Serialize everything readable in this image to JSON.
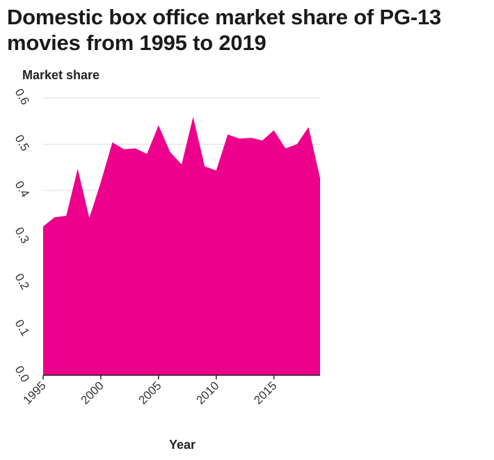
{
  "chart_data": {
    "type": "area",
    "title": "Domestic box office market share of PG-13 movies from 1995 to 2019",
    "xlabel": "Year",
    "ylabel": "Market share",
    "x": [
      1995,
      1996,
      1997,
      1998,
      1999,
      2000,
      2001,
      2002,
      2003,
      2004,
      2005,
      2006,
      2007,
      2008,
      2009,
      2010,
      2011,
      2012,
      2013,
      2014,
      2015,
      2016,
      2017,
      2018,
      2019
    ],
    "series": [
      {
        "values": [
          0.322,
          0.342,
          0.345,
          0.447,
          0.34,
          0.418,
          0.504,
          0.489,
          0.491,
          0.479,
          0.541,
          0.483,
          0.456,
          0.559,
          0.452,
          0.443,
          0.521,
          0.512,
          0.514,
          0.508,
          0.53,
          0.491,
          0.5,
          0.537,
          0.427
        ]
      }
    ],
    "xlim": [
      1995,
      2019
    ],
    "ylim": [
      0,
      0.6
    ],
    "x_ticks": [
      "1995",
      "2000",
      "2005",
      "2010",
      "2015"
    ],
    "y_ticks": [
      "0.0",
      "0.1",
      "0.2",
      "0.3",
      "0.4",
      "0.5",
      "0.6"
    ],
    "grid": "horizontal",
    "colors": {
      "area": "#ec008c",
      "grid": "#dddddd",
      "axis": "#222222"
    }
  }
}
